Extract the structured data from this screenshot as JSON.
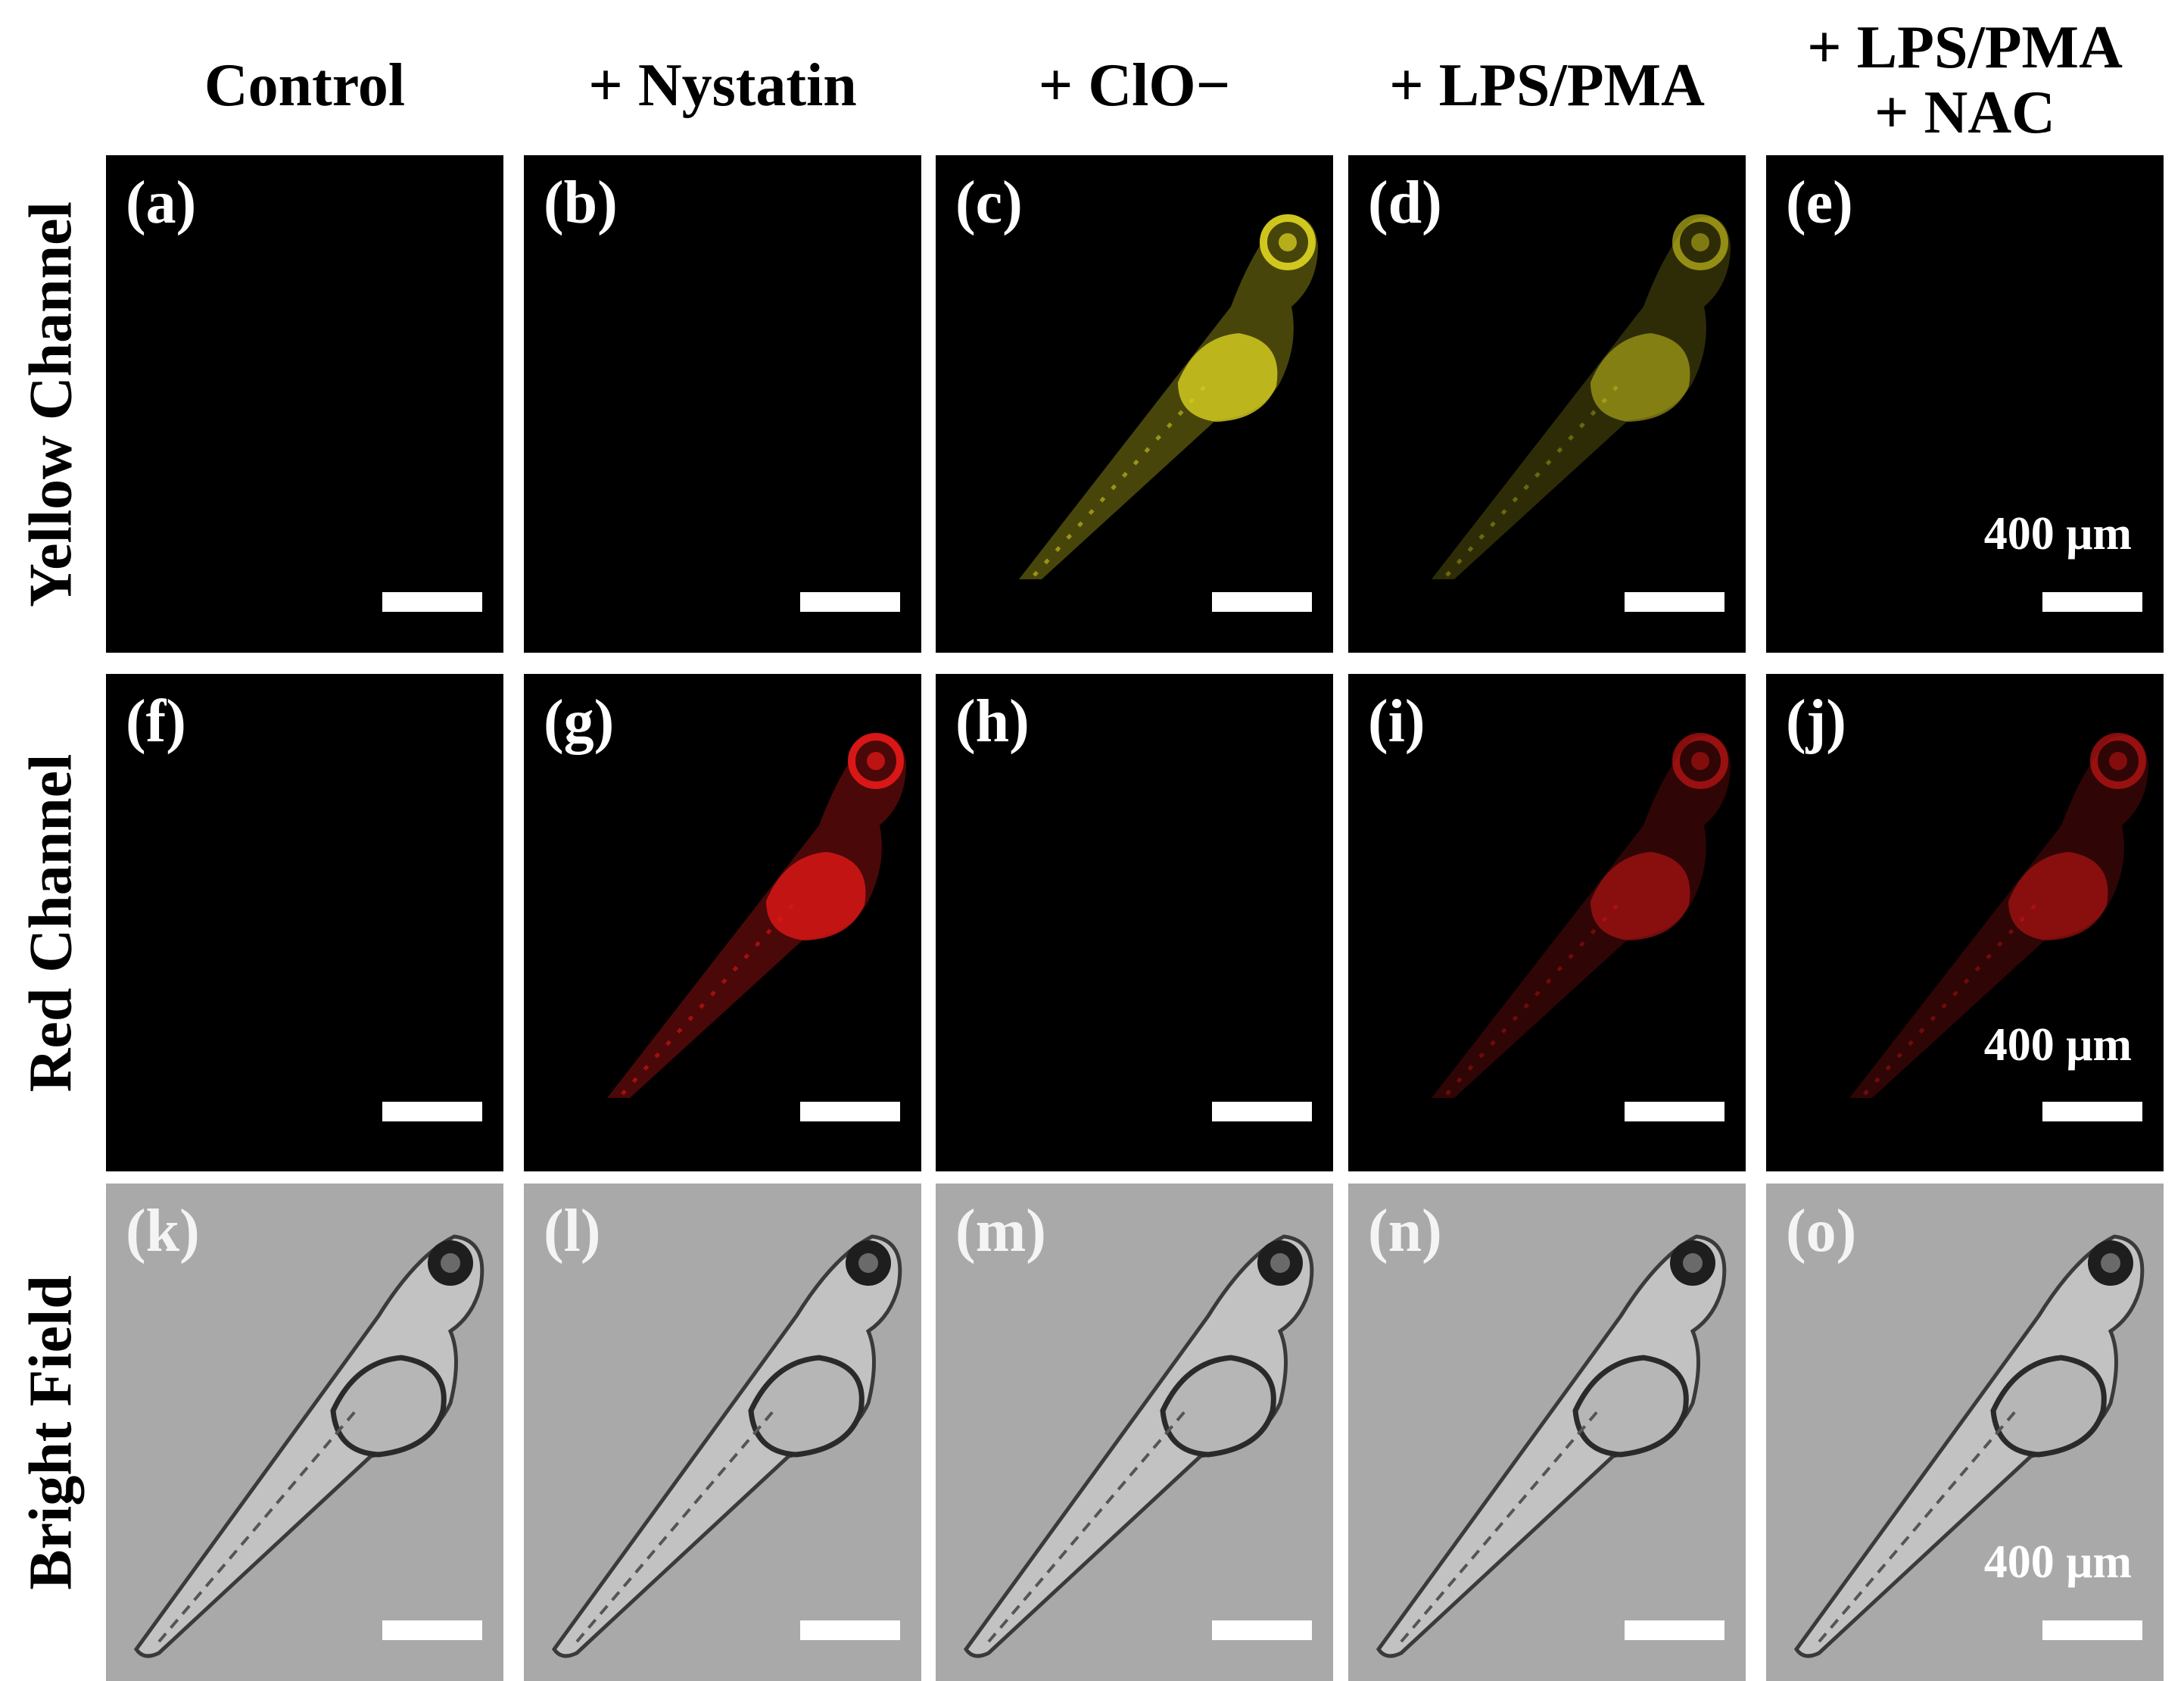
{
  "columns": [
    "Control",
    "+ Nystatin",
    "+ ClO−",
    "+ LPS/PMA",
    "+ LPS/PMA\n+ NAC"
  ],
  "rows": [
    "Yellow Channel",
    "Red Channel",
    "Bright Field"
  ],
  "panels": [
    {
      "label": "(a)",
      "row": 0,
      "col": 0,
      "fish": "none"
    },
    {
      "label": "(b)",
      "row": 0,
      "col": 1,
      "fish": "none"
    },
    {
      "label": "(c)",
      "row": 0,
      "col": 2,
      "fish": "bright"
    },
    {
      "label": "(d)",
      "row": 0,
      "col": 3,
      "fish": "medium"
    },
    {
      "label": "(e)",
      "row": 0,
      "col": 4,
      "fish": "none",
      "scale_text": "400 μm"
    },
    {
      "label": "(f)",
      "row": 1,
      "col": 0,
      "fish": "none"
    },
    {
      "label": "(g)",
      "row": 1,
      "col": 1,
      "fish": "bright"
    },
    {
      "label": "(h)",
      "row": 1,
      "col": 2,
      "fish": "none"
    },
    {
      "label": "(i)",
      "row": 1,
      "col": 3,
      "fish": "medium"
    },
    {
      "label": "(j)",
      "row": 1,
      "col": 4,
      "fish": "medium",
      "scale_text": "400 μm"
    },
    {
      "label": "(k)",
      "row": 2,
      "col": 0,
      "fish": "bf"
    },
    {
      "label": "(l)",
      "row": 2,
      "col": 1,
      "fish": "bf"
    },
    {
      "label": "(m)",
      "row": 2,
      "col": 2,
      "fish": "bf"
    },
    {
      "label": "(n)",
      "row": 2,
      "col": 3,
      "fish": "bf"
    },
    {
      "label": "(o)",
      "row": 2,
      "col": 4,
      "fish": "bf",
      "scale_text": "400 μm"
    }
  ],
  "colors": {
    "yellow_channel": "#d8d020",
    "red_channel": "#e01818",
    "bright_field_bg": "#a9a9a9",
    "panel_bg": "#000000",
    "bright_field_label": "#f4f4f4"
  }
}
